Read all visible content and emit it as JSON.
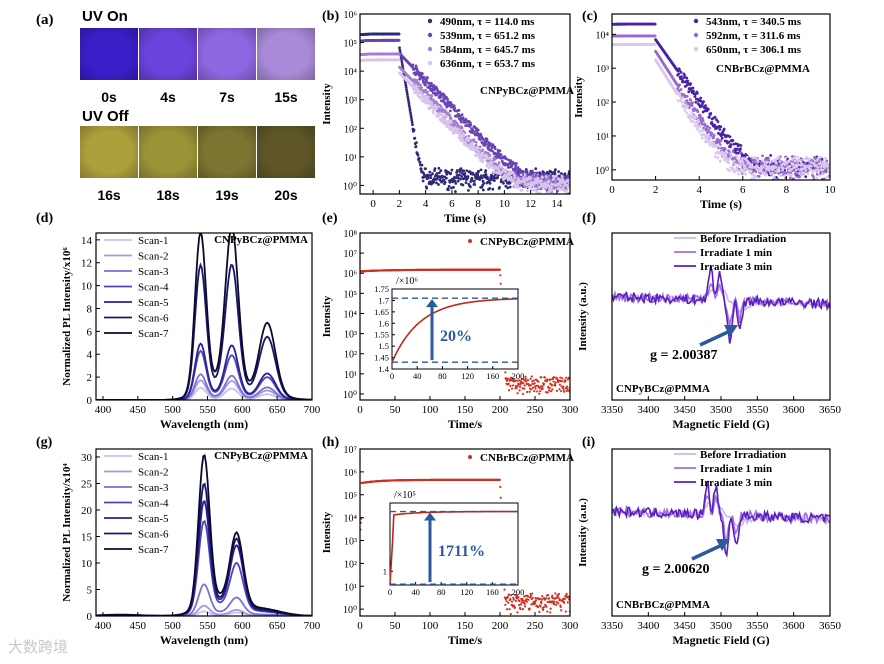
{
  "panel_a": {
    "letter": "(a)",
    "uv_on_label": "UV On",
    "uv_off_label": "UV Off",
    "on_frames": [
      {
        "label": "0s",
        "color": "#3a1ec8"
      },
      {
        "label": "4s",
        "color": "#6a42dc"
      },
      {
        "label": "7s",
        "color": "#8f66e2"
      },
      {
        "label": "15s",
        "color": "#a98ad8"
      }
    ],
    "off_frames": [
      {
        "label": "16s",
        "color": "#aca03c"
      },
      {
        "label": "18s",
        "color": "#9c9236"
      },
      {
        "label": "19s",
        "color": "#7c7430"
      },
      {
        "label": "20s",
        "color": "#5e5628"
      }
    ]
  },
  "watermark": "大数跨境",
  "chart_data": [
    {
      "id": "b",
      "letter": "(b)",
      "type": "scatter",
      "annotation": "CNPyBCz@PMMA",
      "xlabel": "Time (s)",
      "ylabel": "Intensity",
      "xlim": [
        -1,
        15
      ],
      "ylog": true,
      "ylim_exp": [
        -0.3,
        6
      ],
      "xticks": [
        0,
        2,
        4,
        6,
        8,
        10,
        12,
        14
      ],
      "yticks_exp": [
        0,
        1,
        2,
        3,
        4,
        5,
        6
      ],
      "ytick_labels": [
        "10⁰",
        "10¹",
        "10²",
        "10³",
        "10⁴",
        "10⁵",
        "10⁶"
      ],
      "legend_position": "top-right",
      "series": [
        {
          "name": "490nm, τ = 114.0 ms",
          "color": "#2e2a78",
          "plateau": 200000,
          "tau": 0.114,
          "floor": 1.5
        },
        {
          "name": "539nm, τ = 651.2 ms",
          "color": "#6a44b4",
          "plateau": 120000,
          "tau": 0.651,
          "floor": 0.9
        },
        {
          "name": "584nm, τ = 645.7 ms",
          "color": "#a47ed2",
          "plateau": 40000,
          "tau": 0.646,
          "floor": 0.9
        },
        {
          "name": "636nm, τ = 653.7 ms",
          "color": "#d6c4ec",
          "plateau": 25000,
          "tau": 0.654,
          "floor": 0.9
        }
      ]
    },
    {
      "id": "c",
      "letter": "(c)",
      "type": "scatter",
      "annotation": "CNBrBCz@PMMA",
      "xlabel": "Time (s)",
      "ylabel": "Intensity",
      "xlim": [
        0,
        10
      ],
      "ylog": true,
      "ylim_exp": [
        -0.3,
        4.6
      ],
      "xticks": [
        0,
        2,
        4,
        6,
        8,
        10
      ],
      "yticks_exp": [
        0,
        1,
        2,
        3,
        4
      ],
      "ytick_labels": [
        "10⁰",
        "10¹",
        "10²",
        "10³",
        "10⁴"
      ],
      "legend_position": "top-right",
      "series": [
        {
          "name": "543nm, τ = 340.5 ms",
          "color": "#4a22a8",
          "plateau": 20000,
          "tau": 0.34,
          "floor": 1.0
        },
        {
          "name": "592nm, τ = 311.6 ms",
          "color": "#9a6ad0",
          "plateau": 9000,
          "tau": 0.31,
          "floor": 1.0
        },
        {
          "name": "650nm, τ = 306.1 ms",
          "color": "#d8c8ee",
          "plateau": 5000,
          "tau": 0.306,
          "floor": 1.0
        }
      ]
    },
    {
      "id": "d",
      "letter": "(d)",
      "type": "line",
      "annotation": "CNPyBCz@PMMA",
      "xlabel": "Wavelength (nm)",
      "ylabel": "Normalized PL Intensity/x10⁶",
      "xlim": [
        390,
        700
      ],
      "ylim": [
        0,
        14.6
      ],
      "xticks": [
        400,
        450,
        500,
        550,
        600,
        650,
        700
      ],
      "yticks": [
        0,
        2,
        4,
        6,
        8,
        10,
        12,
        14
      ],
      "legend_position": "top-left",
      "peaks": [
        540,
        585,
        636
      ],
      "series": [
        {
          "name": "Scan-1",
          "color": "#c7c2ec",
          "peak_heights": [
            1.0,
            0.9,
            0.45
          ]
        },
        {
          "name": "Scan-2",
          "color": "#a19be0",
          "peak_heights": [
            1.6,
            1.5,
            0.75
          ]
        },
        {
          "name": "Scan-3",
          "color": "#7a72d2",
          "peak_heights": [
            2.1,
            1.9,
            1.0
          ]
        },
        {
          "name": "Scan-4",
          "color": "#4e44c0",
          "peak_heights": [
            4.0,
            3.5,
            1.8
          ]
        },
        {
          "name": "Scan-5",
          "color": "#2a2294",
          "peak_heights": [
            4.6,
            4.3,
            2.1
          ]
        },
        {
          "name": "Scan-6",
          "color": "#1a1668",
          "peak_heights": [
            11.0,
            10.7,
            5.0
          ]
        },
        {
          "name": "Scan-7",
          "color": "#0a0a2e",
          "peak_heights": [
            13.7,
            13.7,
            6.1
          ]
        }
      ]
    },
    {
      "id": "e",
      "letter": "(e)",
      "type": "scatter",
      "annotation": "CNPyBCz@PMMA",
      "xlabel": "Time/s",
      "ylabel": "Intensity",
      "xlim": [
        0,
        300
      ],
      "ylog": true,
      "ylim_exp": [
        -0.3,
        8
      ],
      "xticks": [
        0,
        50,
        100,
        150,
        200,
        250,
        300
      ],
      "yticks_exp": [
        0,
        1,
        2,
        3,
        4,
        5,
        6,
        7,
        8
      ],
      "ytick_labels": [
        "10⁰",
        "10¹",
        "10²",
        "10³",
        "10⁴",
        "10⁵",
        "10⁶",
        "10⁷",
        "10⁸"
      ],
      "legend_position": "top-right",
      "series": [
        {
          "name": "CNPyBCz@PMMA",
          "color": "#d03020",
          "plateau": 1500000,
          "floor": 3
        }
      ],
      "inset": {
        "unit": "/×10⁶",
        "xticks": [
          0,
          40,
          80,
          120,
          160,
          200
        ],
        "yticks": [
          1.4,
          1.45,
          1.5,
          1.55,
          1.6,
          1.65,
          1.7,
          1.75
        ],
        "xlim": [
          0,
          200
        ],
        "ylim": [
          1.4,
          1.75
        ],
        "curve_start": 1.43,
        "curve_end": 1.71,
        "percent_label": "20%"
      }
    },
    {
      "id": "f",
      "letter": "(f)",
      "type": "line",
      "annotation": "CNPyBCz@PMMA",
      "g_label": "g = 2.00387",
      "xlabel": "Magnetic Field (G)",
      "ylabel": "Intensity (a.u.)",
      "xlim": [
        3350,
        3650
      ],
      "xticks": [
        3350,
        3400,
        3450,
        3500,
        3550,
        3600,
        3650
      ],
      "legend_position": "top-right",
      "series": [
        {
          "name": "Before Irradiation",
          "color": "#cbb8ec",
          "amp": 0.15
        },
        {
          "name": "Irradiate 1 min",
          "color": "#a070dc",
          "amp": 0.6
        },
        {
          "name": "Irradiate 3 min",
          "color": "#5a1ec0",
          "amp": 1.0
        }
      ]
    },
    {
      "id": "g",
      "letter": "(g)",
      "type": "line",
      "annotation": "CNPyBCz@PMMA",
      "xlabel": "Wavelength (nm)",
      "ylabel": "Normalized PL Intensity/x10⁴",
      "xlim": [
        390,
        700
      ],
      "ylim": [
        0,
        31.5
      ],
      "xticks": [
        400,
        450,
        500,
        550,
        600,
        650,
        700
      ],
      "yticks": [
        0,
        5,
        10,
        15,
        20,
        25,
        30
      ],
      "legend_position": "top-left",
      "peaks": [
        545,
        592
      ],
      "series": [
        {
          "name": "Scan-1",
          "color": "#c7c2ec",
          "peak_heights": [
            0.8,
            0.6
          ]
        },
        {
          "name": "Scan-2",
          "color": "#a19be0",
          "peak_heights": [
            1.8,
            1.0
          ]
        },
        {
          "name": "Scan-3",
          "color": "#7a72d2",
          "peak_heights": [
            5.5,
            3.0
          ]
        },
        {
          "name": "Scan-4",
          "color": "#4e44c0",
          "peak_heights": [
            16.5,
            8.5
          ]
        },
        {
          "name": "Scan-5",
          "color": "#2a2294",
          "peak_heights": [
            20.0,
            11.5
          ]
        },
        {
          "name": "Scan-6",
          "color": "#1a1668",
          "peak_heights": [
            23.0,
            12.5
          ]
        },
        {
          "name": "Scan-7",
          "color": "#0a0a2e",
          "peak_heights": [
            28.0,
            13.2
          ]
        }
      ]
    },
    {
      "id": "h",
      "letter": "(h)",
      "type": "scatter",
      "annotation": "CNBrBCz@PMMA",
      "xlabel": "Time/s",
      "ylabel": "Intensity",
      "xlim": [
        0,
        300
      ],
      "ylog": true,
      "ylim_exp": [
        -0.3,
        7
      ],
      "xticks": [
        0,
        50,
        100,
        150,
        200,
        250,
        300
      ],
      "yticks_exp": [
        0,
        1,
        2,
        3,
        4,
        5,
        6,
        7
      ],
      "ytick_labels": [
        "10⁰",
        "10¹",
        "10²",
        "10³",
        "10⁴",
        "10⁵",
        "10⁶",
        "10⁷"
      ],
      "legend_position": "top-right",
      "series": [
        {
          "name": "CNBrBCz@PMMA",
          "color": "#d03020",
          "plateau": 450000,
          "floor": 2
        }
      ],
      "inset": {
        "unit": "/×10⁵",
        "xticks": [
          0,
          40,
          80,
          120,
          160,
          200
        ],
        "yticks": [
          1
        ],
        "xlim": [
          0,
          200
        ],
        "ylim": [
          0.2,
          5
        ],
        "curve_start": 0.25,
        "curve_end": 4.5,
        "percent_label": "1711%"
      }
    },
    {
      "id": "i",
      "letter": "(i)",
      "type": "line",
      "annotation": "CNBrBCz@PMMA",
      "g_label": "g = 2.00620",
      "xlabel": "Magnetic Field (G)",
      "ylabel": "Intensity (a.u.)",
      "xlim": [
        3350,
        3650
      ],
      "xticks": [
        3350,
        3400,
        3450,
        3500,
        3550,
        3600,
        3650
      ],
      "legend_position": "top-right",
      "series": [
        {
          "name": "Before Irradiation",
          "color": "#cbb8ec",
          "amp": 0.15
        },
        {
          "name": "Irradiate 1 min",
          "color": "#a070dc",
          "amp": 0.6
        },
        {
          "name": "Irradiate 3 min",
          "color": "#5a1ec0",
          "amp": 1.0
        }
      ]
    }
  ]
}
